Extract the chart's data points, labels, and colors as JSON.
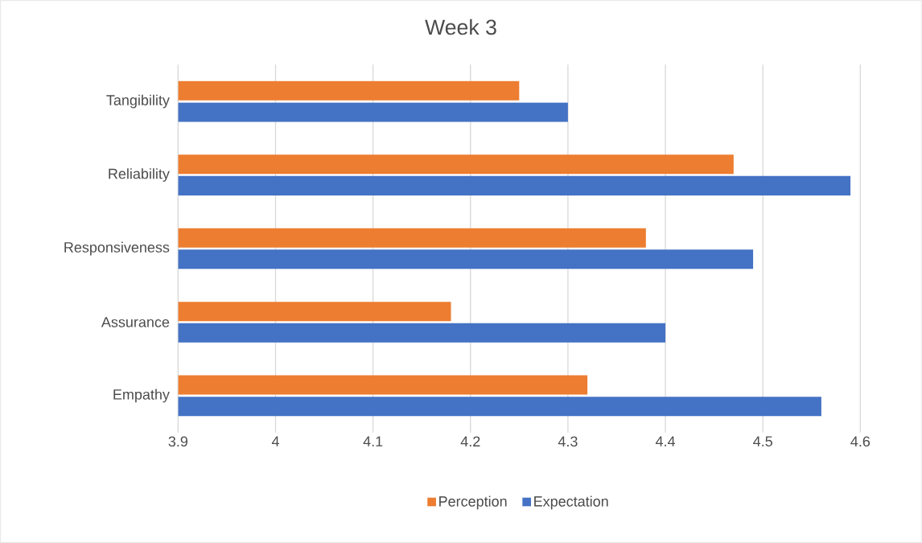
{
  "chart_data": {
    "type": "bar",
    "orientation": "horizontal",
    "title": "Week 3",
    "categories": [
      "Tangibility",
      "Reliability",
      "Responsiveness",
      "Assurance",
      "Empathy"
    ],
    "series": [
      {
        "name": "Perception",
        "color": "#ed7d31",
        "values": [
          4.25,
          4.47,
          4.38,
          4.18,
          4.32
        ]
      },
      {
        "name": "Expectation",
        "color": "#4472c4",
        "values": [
          4.3,
          4.59,
          4.49,
          4.4,
          4.56
        ]
      }
    ],
    "xlim": [
      3.9,
      4.6
    ],
    "xticks": [
      3.9,
      4,
      4.1,
      4.2,
      4.3,
      4.4,
      4.5,
      4.6
    ],
    "grid": "x",
    "legend": "bottom"
  }
}
